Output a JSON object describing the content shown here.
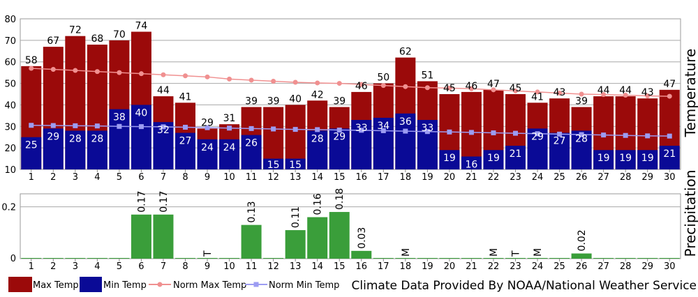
{
  "chart_data": [
    {
      "type": "bar",
      "ylabel": "Temperature",
      "ylim": [
        10,
        80
      ],
      "yticks": [
        "10",
        "20",
        "30",
        "40",
        "50",
        "60",
        "70",
        "80"
      ],
      "grid": true,
      "categories": [
        "1",
        "2",
        "3",
        "4",
        "5",
        "6",
        "7",
        "8",
        "9",
        "10",
        "11",
        "12",
        "13",
        "14",
        "15",
        "16",
        "17",
        "18",
        "19",
        "20",
        "21",
        "22",
        "23",
        "24",
        "25",
        "26",
        "27",
        "28",
        "29",
        "30"
      ],
      "series": [
        {
          "name": "Max Temp",
          "kind": "bar",
          "color": "#9b0a0a",
          "values": [
            58,
            67,
            72,
            68,
            70,
            74,
            44,
            41,
            29,
            31,
            39,
            39,
            40,
            42,
            39,
            46,
            50,
            62,
            51,
            45,
            46,
            47,
            45,
            41,
            43,
            39,
            44,
            44,
            43,
            47
          ]
        },
        {
          "name": "Min Temp",
          "kind": "bar",
          "color": "#0a0a96",
          "values": [
            25,
            29,
            28,
            28,
            38,
            40,
            32,
            27,
            24,
            24,
            26,
            15,
            15,
            28,
            29,
            33,
            34,
            36,
            33,
            19,
            16,
            19,
            21,
            29,
            27,
            28,
            19,
            19,
            19,
            21
          ]
        },
        {
          "name": "Norm Max Temp",
          "kind": "line",
          "color": "#f09090",
          "values": [
            57,
            56.5,
            56,
            55.5,
            55,
            54.5,
            54,
            53.5,
            53,
            52,
            51.5,
            51,
            50.5,
            50.2,
            50,
            49.5,
            49,
            48.5,
            48,
            47.8,
            47.5,
            47,
            46.5,
            46,
            45.5,
            45,
            44.8,
            44.5,
            44.2,
            44
          ]
        },
        {
          "name": "Norm Min Temp",
          "kind": "line",
          "color": "#9c9cf2",
          "values": [
            30.5,
            30.4,
            30.3,
            30.2,
            30,
            29.9,
            29.8,
            29.6,
            29.4,
            29.2,
            29,
            28.8,
            28.6,
            28.5,
            28.3,
            28.2,
            28,
            27.8,
            27.6,
            27.4,
            27.2,
            27,
            26.8,
            26.6,
            26.4,
            26.2,
            26,
            25.8,
            25.6,
            25.5
          ]
        }
      ]
    },
    {
      "type": "bar",
      "ylabel": "Precipitation",
      "ylim": [
        0,
        0.25
      ],
      "yticks": [
        "0",
        "0.2"
      ],
      "grid": true,
      "categories": [
        "1",
        "2",
        "3",
        "4",
        "5",
        "6",
        "7",
        "8",
        "9",
        "10",
        "11",
        "12",
        "13",
        "14",
        "15",
        "16",
        "17",
        "18",
        "19",
        "20",
        "21",
        "22",
        "23",
        "24",
        "25",
        "26",
        "27",
        "28",
        "29",
        "30"
      ],
      "series": [
        {
          "name": "Precipitation",
          "kind": "bar",
          "color": "#3a9e3a",
          "values": [
            0,
            0,
            0,
            0,
            0,
            0.17,
            0.17,
            0,
            0,
            0,
            0.13,
            0,
            0.11,
            0.16,
            0.18,
            0.03,
            0,
            0,
            0,
            0,
            0,
            0,
            0,
            0,
            0,
            0.02,
            0,
            0,
            0,
            0
          ]
        }
      ],
      "labels": [
        "",
        "",
        "",
        "",
        "",
        "0.17",
        "0.17",
        "",
        "T",
        "",
        "0.13",
        "",
        "0.11",
        "0.16",
        "0.18",
        "0.03",
        "",
        "M",
        "",
        "",
        "",
        "M",
        "T",
        "M",
        "",
        "0.02",
        "",
        "",
        "",
        ""
      ]
    }
  ],
  "legend": [
    {
      "label": "Max Temp",
      "swatch": "box",
      "color": "#9b0a0a"
    },
    {
      "label": "Min Temp",
      "swatch": "box",
      "color": "#0a0a96"
    },
    {
      "label": "Norm Max Temp",
      "swatch": "line",
      "color": "#f09090"
    },
    {
      "label": "Norm Min Temp",
      "swatch": "line",
      "color": "#9c9cf2"
    }
  ],
  "credit": "Climate Data Provided By NOAA/National Weather Service"
}
